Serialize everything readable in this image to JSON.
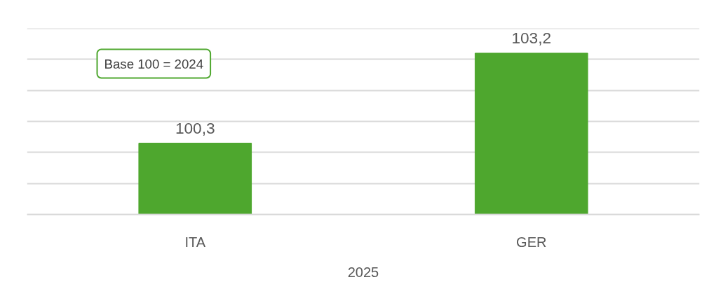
{
  "chart_data": {
    "type": "bar",
    "categories": [
      "ITA",
      "GER"
    ],
    "xlabel": "2025",
    "values": [
      100.3,
      103.2
    ],
    "value_labels": [
      "100,3",
      "103,2"
    ],
    "color": "#4ea72e",
    "ylim": [
      98,
      104
    ],
    "yticks": [
      {
        "value": 98,
        "label": null
      },
      {
        "value": 99,
        "label": null
      },
      {
        "value": 100,
        "label": null
      },
      {
        "value": 101,
        "label": null
      },
      {
        "value": 102,
        "label": null
      },
      {
        "value": 103,
        "label": null
      },
      {
        "value": 104,
        "label": null
      }
    ],
    "grid": "y",
    "tick_labels": "x",
    "annotations": [
      "Base 100 = 2024"
    ]
  }
}
